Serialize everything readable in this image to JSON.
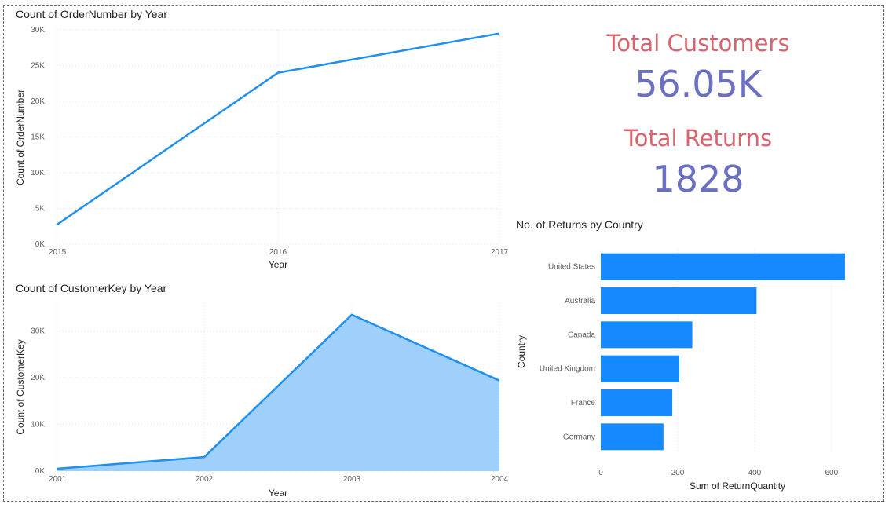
{
  "kpis": [
    {
      "label": "Total Customers",
      "value": "56.05K"
    },
    {
      "label": "Total Returns",
      "value": "1828"
    }
  ],
  "colors": {
    "line": "#1f8ff0",
    "area_fill": "#9fcffb",
    "bar": "#1589ff",
    "kpi_label": "#d9646e",
    "kpi_value": "#6b70c2"
  },
  "chart_data": [
    {
      "type": "line",
      "title": "Count of OrderNumber by Year",
      "xlabel": "Year",
      "ylabel": "Count of OrderNumber",
      "x": [
        2015,
        2016,
        2017
      ],
      "x_tick_labels": [
        "2015",
        "2016",
        "2017"
      ],
      "y_ticks": [
        0,
        5000,
        10000,
        15000,
        20000,
        25000,
        30000
      ],
      "y_tick_labels": [
        "0K",
        "5K",
        "10K",
        "15K",
        "20K",
        "25K",
        "30K"
      ],
      "ylim": [
        0,
        30000
      ],
      "series": [
        {
          "values": [
            2700,
            24000,
            29500
          ]
        }
      ],
      "grid": true
    },
    {
      "type": "area",
      "title": "Count of CustomerKey by Year",
      "xlabel": "Year",
      "ylabel": "Count of CustomerKey",
      "x": [
        2001,
        2002,
        2003,
        2004
      ],
      "x_tick_labels": [
        "2001",
        "2002",
        "2003",
        "2004"
      ],
      "y_ticks": [
        0,
        10000,
        20000,
        30000
      ],
      "y_tick_labels": [
        "0K",
        "10K",
        "20K",
        "30K"
      ],
      "ylim": [
        0,
        36000
      ],
      "series": [
        {
          "values": [
            500,
            3000,
            33500,
            19400
          ]
        }
      ],
      "grid": true
    },
    {
      "type": "bar",
      "orientation": "horizontal",
      "title": "No. of Returns by Country",
      "xlabel": "Sum of ReturnQuantity",
      "ylabel": "Country",
      "categories": [
        "United States",
        "Australia",
        "Canada",
        "United Kingdom",
        "France",
        "Germany"
      ],
      "values": [
        635,
        405,
        238,
        204,
        186,
        163
      ],
      "x_ticks": [
        0,
        200,
        400,
        600
      ],
      "x_tick_labels": [
        "0",
        "200",
        "400",
        "600"
      ],
      "xlim": [
        0,
        680
      ],
      "grid": true
    }
  ]
}
